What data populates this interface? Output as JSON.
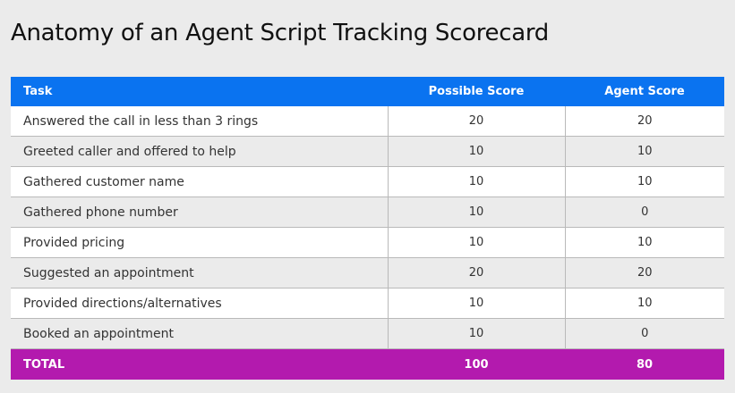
{
  "title": "Anatomy of an Agent Script Tracking Scorecard",
  "table": {
    "headers": {
      "task": "Task",
      "possible": "Possible Score",
      "agent": "Agent Score"
    },
    "rows": [
      {
        "task": "Answered the call in less than 3 rings",
        "possible": "20",
        "agent": "20"
      },
      {
        "task": "Greeted caller and offered to help",
        "possible": "10",
        "agent": "10"
      },
      {
        "task": "Gathered customer name",
        "possible": "10",
        "agent": "10"
      },
      {
        "task": "Gathered phone number",
        "possible": "10",
        "agent": "0"
      },
      {
        "task": "Provided pricing",
        "possible": "10",
        "agent": "10"
      },
      {
        "task": "Suggested an appointment",
        "possible": "20",
        "agent": "20"
      },
      {
        "task": "Provided directions/alternatives",
        "possible": "10",
        "agent": "10"
      },
      {
        "task": "Booked an appointment",
        "possible": "10",
        "agent": "0"
      }
    ],
    "total": {
      "label": "TOTAL",
      "possible": "100",
      "agent": "80"
    }
  },
  "colors": {
    "header_bg": "#0a73f0",
    "total_bg": "#b31aae",
    "page_bg": "#ebebeb"
  }
}
